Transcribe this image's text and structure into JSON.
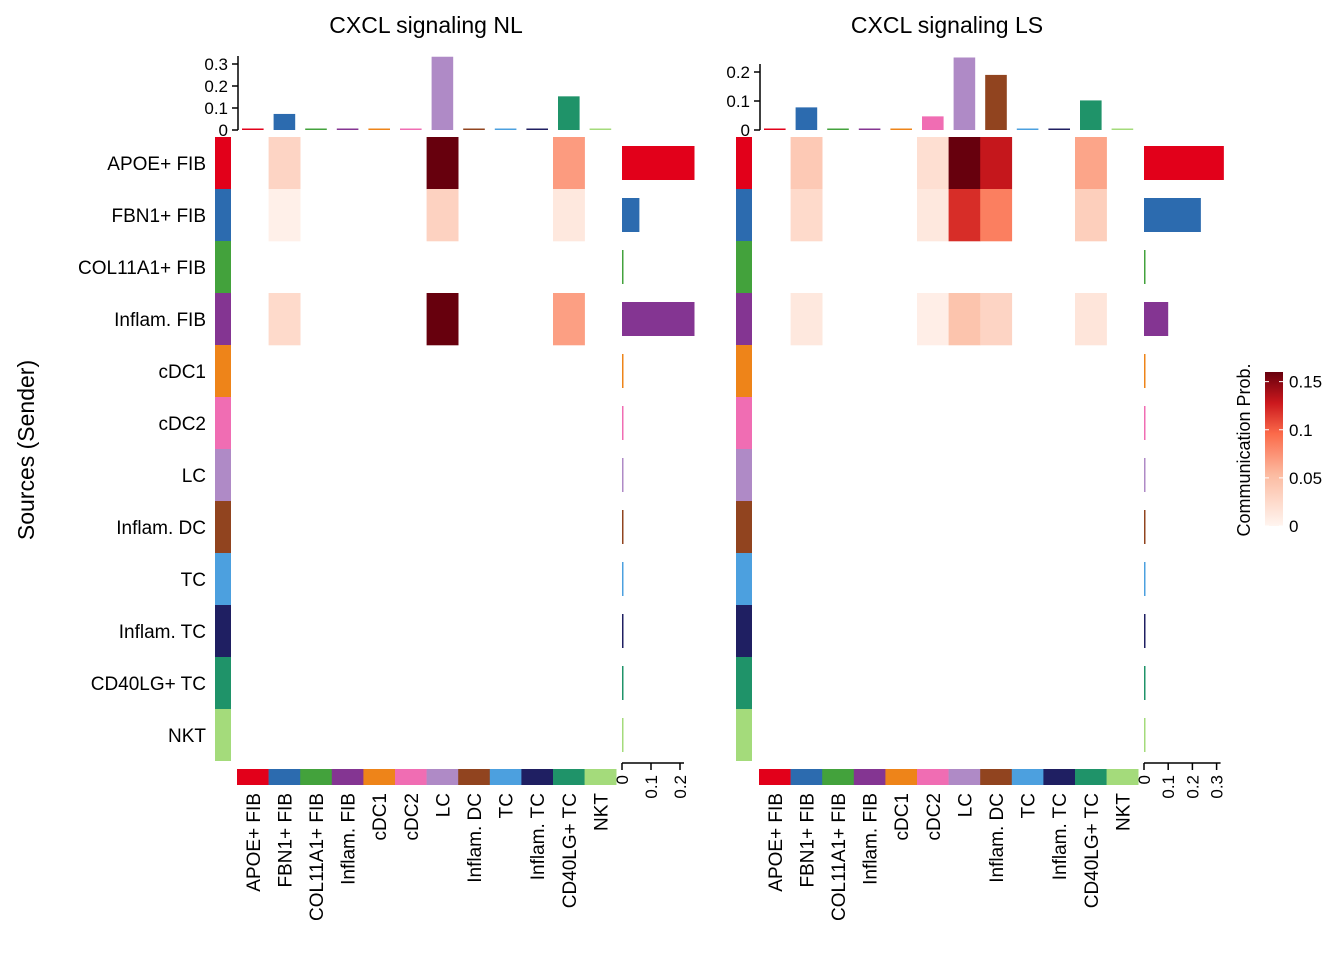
{
  "chart_data": {
    "type": "heatmap",
    "ylabel": "Sources (Sender)",
    "cell_types": [
      "APOE+ FIB",
      "FBN1+ FIB",
      "COL11A1+ FIB",
      "Inflam. FIB",
      "cDC1",
      "cDC2",
      "LC",
      "Inflam. DC",
      "TC",
      "Inflam. TC",
      "CD40LG+ TC",
      "NKT"
    ],
    "cell_colors": [
      "#E2001A",
      "#2C6BAF",
      "#43A23C",
      "#843592",
      "#EE8419",
      "#F06DB3",
      "#AF8AC6",
      "#91441F",
      "#4CA0DF",
      "#1F1F62",
      "#1F9369",
      "#A4DB7B"
    ],
    "legend": {
      "title": "Communication Prob.",
      "ticks": [
        0,
        0.05,
        0.1,
        0.15
      ],
      "tick_labels": [
        "0",
        "0.05",
        "0.1",
        "0.15"
      ]
    },
    "panels": [
      {
        "title": "CXCL signaling  NL",
        "top_ticks": [
          "0",
          "0.1",
          "0.2",
          "0.3"
        ],
        "top_max": 0.3,
        "top_values": [
          0.003,
          0.073,
          0.003,
          0.003,
          0.003,
          0.003,
          0.333,
          0.003,
          0.003,
          0.003,
          0.153,
          0.003
        ],
        "right_ticks": [
          "0",
          "0.1",
          "0.2"
        ],
        "right_max": 0.2,
        "right_values": [
          0.25,
          0.06,
          0.003,
          0.25,
          0.003,
          0.003,
          0.003,
          0.003,
          0.003,
          0.003,
          0.003,
          0.003
        ],
        "matrix": [
          [
            0,
            0.03,
            0,
            0,
            0,
            0,
            0.16,
            0,
            0,
            0,
            0.07,
            0
          ],
          [
            0,
            0.005,
            0,
            0,
            0,
            0,
            0.032,
            0,
            0,
            0,
            0.012,
            0
          ],
          [
            0,
            0,
            0,
            0,
            0,
            0,
            0,
            0,
            0,
            0,
            0,
            0
          ],
          [
            0,
            0.025,
            0,
            0,
            0,
            0,
            0.16,
            0,
            0,
            0,
            0.068,
            0
          ],
          [
            0,
            0,
            0,
            0,
            0,
            0,
            0,
            0,
            0,
            0,
            0,
            0
          ],
          [
            0,
            0,
            0,
            0,
            0,
            0,
            0,
            0,
            0,
            0,
            0,
            0
          ],
          [
            0,
            0,
            0,
            0,
            0,
            0,
            0,
            0,
            0,
            0,
            0,
            0
          ],
          [
            0,
            0,
            0,
            0,
            0,
            0,
            0,
            0,
            0,
            0,
            0,
            0
          ],
          [
            0,
            0,
            0,
            0,
            0,
            0,
            0,
            0,
            0,
            0,
            0,
            0
          ],
          [
            0,
            0,
            0,
            0,
            0,
            0,
            0,
            0,
            0,
            0,
            0,
            0
          ],
          [
            0,
            0,
            0,
            0,
            0,
            0,
            0,
            0,
            0,
            0,
            0,
            0
          ],
          [
            0,
            0,
            0,
            0,
            0,
            0,
            0,
            0,
            0,
            0,
            0,
            0
          ]
        ]
      },
      {
        "title": "CXCL signaling  LS",
        "top_ticks": [
          "0",
          "0.1",
          "0.2"
        ],
        "top_max": 0.2,
        "top_values": [
          0.003,
          0.078,
          0.003,
          0.003,
          0.003,
          0.047,
          0.25,
          0.19,
          0.003,
          0.003,
          0.102,
          0.003
        ],
        "right_ticks": [
          "0",
          "0.1",
          "0.2",
          "0.3"
        ],
        "right_max": 0.3,
        "right_values": [
          0.33,
          0.235,
          0.003,
          0.1,
          0.003,
          0.003,
          0.003,
          0.003,
          0.003,
          0.003,
          0.003,
          0.003
        ],
        "matrix": [
          [
            0,
            0.04,
            0,
            0,
            0,
            0.02,
            0.16,
            0.13,
            0,
            0,
            0.065,
            0
          ],
          [
            0,
            0.025,
            0,
            0,
            0,
            0.012,
            0.12,
            0.085,
            0,
            0,
            0.035,
            0
          ],
          [
            0,
            0,
            0,
            0,
            0,
            0,
            0,
            0,
            0,
            0,
            0,
            0
          ],
          [
            0,
            0.012,
            0,
            0,
            0,
            0.006,
            0.045,
            0.03,
            0,
            0,
            0.015,
            0
          ],
          [
            0,
            0,
            0,
            0,
            0,
            0,
            0,
            0,
            0,
            0,
            0,
            0
          ],
          [
            0,
            0,
            0,
            0,
            0,
            0,
            0,
            0,
            0,
            0,
            0,
            0
          ],
          [
            0,
            0,
            0,
            0,
            0,
            0,
            0,
            0,
            0,
            0,
            0,
            0
          ],
          [
            0,
            0,
            0,
            0,
            0,
            0,
            0,
            0,
            0,
            0,
            0,
            0
          ],
          [
            0,
            0,
            0,
            0,
            0,
            0,
            0,
            0,
            0,
            0,
            0,
            0
          ],
          [
            0,
            0,
            0,
            0,
            0,
            0,
            0,
            0,
            0,
            0,
            0,
            0
          ],
          [
            0,
            0,
            0,
            0,
            0,
            0,
            0,
            0,
            0,
            0,
            0,
            0
          ],
          [
            0,
            0,
            0,
            0,
            0,
            0,
            0,
            0,
            0,
            0,
            0,
            0
          ]
        ]
      }
    ]
  }
}
